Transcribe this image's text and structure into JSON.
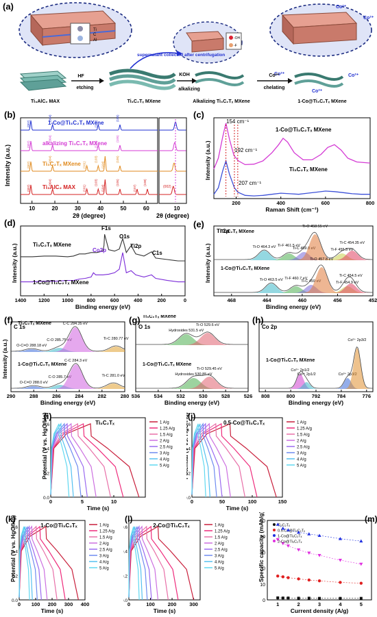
{
  "panel_labels": {
    "a": "(a)",
    "b": "(b)",
    "c": "(c)",
    "d": "(d)",
    "e": "(e)",
    "f": "(f)",
    "g": "(g)",
    "h": "(h)",
    "i": "(i)",
    "j": "(j)",
    "k": "(k)",
    "l": "(l)",
    "m": "(m)"
  },
  "scheme": {
    "stage_labels": [
      "Ti₃AlC₂ MAX",
      "Ti₃C₂Tₓ MXene",
      "Alkalizing Ti₃C₂Tₓ MXene",
      "1-Co@Ti₃C₂Tₓ MXene"
    ],
    "arrow_labels": [
      "HF",
      "etching",
      "KOH",
      "alkalizing",
      "Co²⁺",
      "chelating"
    ],
    "note": "supernatant collected after centrifugation",
    "atom_legend": [
      "Ti",
      "C",
      "Al",
      "-OH",
      "-F"
    ],
    "co_ion": "Co²⁺"
  },
  "xrd": {
    "xlabel": "2θ (degree)",
    "ylabel": "Intensity (a.u.)",
    "traces": [
      {
        "name": "1-Co@Ti₃C₂Tₓ MXene",
        "color": "#1f2fd0",
        "peaks": [
          "(002)",
          "(004)",
          "(103)",
          "(105)"
        ]
      },
      {
        "name": "alkalizing Ti₃C₂Tₓ MXene",
        "color": "#d43ad4",
        "peaks": [
          "(002)",
          "(004)",
          "(103)",
          "(105)"
        ]
      },
      {
        "name": "Ti₃C₂Tₓ MXene",
        "color": "#e08a1e",
        "peaks": [
          "(002)",
          "(004)",
          "(101)",
          "(103)",
          "(104)",
          "(105)"
        ]
      },
      {
        "name": "Ti₃AlC₂ MAX",
        "color": "#d42020",
        "peaks": [
          "(002)",
          "(004)",
          "(101)",
          "(103)",
          "(104)",
          "(105)",
          "(107)",
          "(108)"
        ]
      }
    ],
    "x_ticks": [
      "10",
      "20",
      "30",
      "40",
      "50",
      "60"
    ],
    "inset_ticks": [
      "10"
    ],
    "inset_peak": "(002)"
  },
  "chart_data": [
    {
      "type": "line",
      "title": "",
      "xlabel": "Raman Shift (cm⁻¹)",
      "ylabel": "Intensity (a.u.)",
      "xlim": [
        100,
        800
      ],
      "x_ticks": [
        200,
        400,
        600,
        800
      ],
      "series": [
        {
          "name": "1-Co@Ti₃C₂Tₓ MXene",
          "color": "#d43ad4",
          "x": [
            100,
            120,
            140,
            154,
            170,
            190,
            210,
            240,
            280,
            320,
            360,
            390,
            410,
            430,
            460,
            500,
            540,
            580,
            610,
            640,
            670,
            700,
            740,
            800
          ],
          "y": [
            0.55,
            0.75,
            1.15,
            1.4,
            1.1,
            0.8,
            0.7,
            0.63,
            0.64,
            0.7,
            0.85,
            1.0,
            1.12,
            1.05,
            0.85,
            0.72,
            0.72,
            0.82,
            0.95,
            1.0,
            0.9,
            0.75,
            0.68,
            0.66
          ]
        },
        {
          "name": "Ti₃C₂Tₓ MXene",
          "color": "#3c50d8",
          "x": [
            100,
            120,
            140,
            154,
            170,
            192,
            207,
            240,
            280,
            320,
            360,
            400,
            440,
            480,
            520,
            560,
            600,
            640,
            680,
            720,
            760,
            800
          ],
          "y": [
            0.08,
            0.2,
            0.52,
            0.7,
            0.45,
            0.2,
            0.12,
            0.06,
            0.05,
            0.06,
            0.08,
            0.1,
            0.09,
            0.08,
            0.1,
            0.12,
            0.14,
            0.13,
            0.11,
            0.09,
            0.08,
            0.08
          ]
        }
      ],
      "annotations": [
        "154 cm⁻¹",
        "192 cm⁻¹",
        "207 cm⁻¹"
      ]
    },
    {
      "type": "line",
      "title": "",
      "xlabel": "Binding energy (eV)",
      "ylabel": "Intensity (a.u.)",
      "xlim": [
        1400,
        0
      ],
      "x_ticks": [
        1400,
        1200,
        1000,
        800,
        600,
        400,
        200,
        0
      ],
      "series": [
        {
          "name": "Ti₃C₂Tₓ MXene",
          "color": "#333333",
          "x": [
            1400,
            1300,
            1200,
            1100,
            1000,
            950,
            900,
            850,
            800,
            750,
            700,
            690,
            685,
            650,
            600,
            560,
            531,
            500,
            459,
            420,
            350,
            285,
            250,
            150,
            60,
            0
          ],
          "y": [
            0.56,
            0.56,
            0.57,
            0.57,
            0.56,
            0.57,
            0.6,
            0.6,
            0.62,
            0.62,
            0.64,
            0.72,
            0.88,
            0.66,
            0.64,
            0.67,
            0.82,
            0.62,
            0.72,
            0.6,
            0.57,
            0.63,
            0.54,
            0.52,
            0.5,
            0.5
          ]
        },
        {
          "name": "1-Co@Ti₃C₂Tₓ MXene",
          "color": "#7a2ad8",
          "x": [
            1400,
            1300,
            1200,
            1100,
            1000,
            950,
            900,
            850,
            800,
            780,
            760,
            700,
            650,
            600,
            560,
            531,
            500,
            459,
            420,
            350,
            285,
            250,
            150,
            60,
            0
          ],
          "y": [
            0.2,
            0.2,
            0.21,
            0.21,
            0.22,
            0.22,
            0.24,
            0.25,
            0.27,
            0.33,
            0.3,
            0.3,
            0.31,
            0.33,
            0.38,
            0.62,
            0.33,
            0.36,
            0.3,
            0.27,
            0.3,
            0.25,
            0.22,
            0.2,
            0.2
          ]
        }
      ],
      "peak_labels": [
        "F1s",
        "O1s",
        "Ti2p",
        "C1s",
        "Co2p"
      ]
    },
    {
      "type": "line",
      "title": "Ti 2p",
      "xlabel": "Binding energy (eV)",
      "ylabel": "Intensity (a.u.)",
      "xlim": [
        470,
        452
      ],
      "x_ticks": [
        468,
        464,
        460,
        456,
        452
      ],
      "series": [
        {
          "name": "Ti₃C₂Tₓ MXene",
          "color": "#333333",
          "components": [
            {
              "label": "Ti-O 464.3 eV",
              "x": 464.3
            },
            {
              "label": "Ti-F 461.5 eV",
              "x": 461.5
            },
            {
              "label": "Ti-C 459.8 eV",
              "x": 459.8
            },
            {
              "label": "Ti-O 458.55 eV",
              "x": 458.55
            },
            {
              "label": "Ti-F 455.5 eV",
              "x": 455.5
            },
            {
              "label": "Ti-C 454.35 eV",
              "x": 454.35
            }
          ]
        },
        {
          "name": "1-Co@Ti₃C₂Tₓ MXene",
          "color": "#333333",
          "components": [
            {
              "label": "Ti-O 463.5 eV",
              "x": 463.5
            },
            {
              "label": "Ti-F 460.7 eV",
              "x": 460.7
            },
            {
              "label": "Ti-C 459 eV",
              "x": 459
            },
            {
              "label": "Ti-O 457.8 eV",
              "x": 457.8
            },
            {
              "label": "Ti-F 454.9 eV",
              "x": 454.9
            },
            {
              "label": "Ti-C 454.5 eV",
              "x": 454.5
            }
          ]
        }
      ]
    },
    {
      "type": "line",
      "title": "C 1s",
      "xlabel": "Binding energy (eV)",
      "ylabel": "Intensity (a.u.)",
      "xlim": [
        290,
        280
      ],
      "x_ticks": [
        290,
        288,
        286,
        284,
        282,
        280
      ],
      "series": [
        {
          "name": "Ti₃C₂Tₓ MXene",
          "components": [
            {
              "label": "O-C=O 288.18 eV",
              "x": 288.18
            },
            {
              "label": "C-O 285.75 eV",
              "x": 285.75
            },
            {
              "label": "C-C 284.35 eV",
              "x": 284.35
            },
            {
              "label": "Ti-C 280.77 eV",
              "x": 280.77
            }
          ]
        },
        {
          "name": "1-Co@Ti₃C₂Tₓ MXene",
          "components": [
            {
              "label": "O-C=O 288.0 eV",
              "x": 288.0
            },
            {
              "label": "C-O 285.7 eV",
              "x": 285.7
            },
            {
              "label": "C-C 284.3 eV",
              "x": 284.3
            },
            {
              "label": "Ti-C 281.0 eV",
              "x": 281.0
            }
          ]
        }
      ]
    },
    {
      "type": "line",
      "title": "O 1s",
      "xlabel": "Binding energy (eV)",
      "ylabel": "",
      "xlim": [
        536,
        526
      ],
      "x_ticks": [
        536,
        534,
        532,
        530,
        528,
        526
      ],
      "series": [
        {
          "name": "Ti₃C₂Tₓ MXene",
          "components": [
            {
              "label": "Hydroxides 531.5 eV",
              "x": 531.5
            },
            {
              "label": "Ti-O 529.6 eV",
              "x": 529.6
            }
          ]
        },
        {
          "name": "1-Co@Ti₃C₂Tₓ MXene",
          "components": [
            {
              "label": "Hydroxides 530.85 eV",
              "x": 530.85
            },
            {
              "label": "Ti-O 529.45 eV",
              "x": 529.45
            }
          ]
        }
      ]
    },
    {
      "type": "line",
      "title": "Co 2p",
      "xlabel": "Binding energy (eV)",
      "ylabel": "",
      "xlim": [
        810,
        774
      ],
      "x_ticks": [
        808,
        800,
        792,
        784,
        776
      ],
      "series": [
        {
          "name": "1-Co@Ti₃C₂Tₓ MXene",
          "components": [
            {
              "label": "Co²⁺ 2p1/2",
              "x": 797
            },
            {
              "label": "Co³⁺ 2p1/2",
              "x": 795
            },
            {
              "label": "Co³⁺ 2p3/2",
              "x": 782
            },
            {
              "label": "Co²⁺ 2p3/2",
              "x": 779
            }
          ]
        }
      ]
    },
    {
      "type": "line",
      "title": "Ti₃C₂Tₓ",
      "xlabel": "Time (s)",
      "ylabel": "Potential (V vs. HgO/Hg)",
      "xlim": [
        0,
        15
      ],
      "ylim": [
        0,
        0.6
      ],
      "x_ticks": [
        0,
        5,
        10
      ],
      "series": [
        {
          "name": "1 A/g",
          "t_end": 14.0
        },
        {
          "name": "1.25 A/g",
          "t_end": 11.5
        },
        {
          "name": "1.5 A/g",
          "t_end": 9.5
        },
        {
          "name": "2 A/g",
          "t_end": 7.2
        },
        {
          "name": "2.5 A/g",
          "t_end": 5.8
        },
        {
          "name": "3 A/g",
          "t_end": 4.8
        },
        {
          "name": "4 A/g",
          "t_end": 3.6
        },
        {
          "name": "5 A/g",
          "t_end": 2.9
        }
      ]
    },
    {
      "type": "line",
      "title": "0.5-Co@Ti₃C₂Tₓ",
      "xlabel": "Time (s)",
      "ylabel": "Potential (V vs. HgO/Hg)",
      "xlim": [
        0,
        150
      ],
      "ylim": [
        0,
        0.6
      ],
      "x_ticks": [
        0,
        50,
        100,
        150
      ],
      "series": [
        {
          "name": "1 A/g",
          "t_end": 140
        },
        {
          "name": "1.25 A/g",
          "t_end": 108
        },
        {
          "name": "1.5 A/g",
          "t_end": 88
        },
        {
          "name": "2 A/g",
          "t_end": 64
        },
        {
          "name": "2.5 A/g",
          "t_end": 50
        },
        {
          "name": "3 A/g",
          "t_end": 41
        },
        {
          "name": "4 A/g",
          "t_end": 30
        },
        {
          "name": "5 A/g",
          "t_end": 23
        }
      ]
    },
    {
      "type": "line",
      "title": "1-Co@Ti₃C₂Tₓ",
      "xlabel": "Time (s)",
      "ylabel": "Potential (V vs. HgO/Hg)",
      "xlim": [
        0,
        400
      ],
      "ylim": [
        0,
        0.6
      ],
      "x_ticks": [
        0,
        100,
        200,
        300,
        400
      ],
      "series": [
        {
          "name": "1 A/g",
          "t_end": 360
        },
        {
          "name": "1.25 A/g",
          "t_end": 280
        },
        {
          "name": "1.5 A/g",
          "t_end": 230
        },
        {
          "name": "2 A/g",
          "t_end": 170
        },
        {
          "name": "2.5 A/g",
          "t_end": 135
        },
        {
          "name": "3 A/g",
          "t_end": 110
        },
        {
          "name": "4 A/g",
          "t_end": 80
        },
        {
          "name": "5 A/g",
          "t_end": 63
        }
      ]
    },
    {
      "type": "line",
      "title": "2-Co@Ti₃C₂Tₓ",
      "xlabel": "Time (s)",
      "ylabel": "",
      "xlim": [
        0,
        330
      ],
      "ylim": [
        0,
        0.6
      ],
      "x_ticks": [
        0,
        100,
        200,
        300
      ],
      "series": [
        {
          "name": "1 A/g",
          "t_end": 300
        },
        {
          "name": "1.25 A/g",
          "t_end": 228
        },
        {
          "name": "1.5 A/g",
          "t_end": 182
        },
        {
          "name": "2 A/g",
          "t_end": 135
        },
        {
          "name": "2.5 A/g",
          "t_end": 105
        },
        {
          "name": "3 A/g",
          "t_end": 85
        },
        {
          "name": "4 A/g",
          "t_end": 62
        },
        {
          "name": "5 A/g",
          "t_end": 48
        }
      ]
    },
    {
      "type": "scatter",
      "title": "",
      "xlabel": "Current density (A/g)",
      "ylabel": "Specific capacity (mAh/g)",
      "xlim": [
        0.5,
        5.5
      ],
      "ylim": [
        0,
        50
      ],
      "x_ticks": [
        1,
        2,
        3,
        4,
        5
      ],
      "y_ticks": [
        0,
        10,
        20,
        30,
        40,
        50
      ],
      "series": [
        {
          "name": "Ti₃C₂Tₓ",
          "color": "#111111",
          "marker": "square",
          "x": [
            1,
            1.25,
            1.5,
            2,
            2.5,
            3,
            4,
            5
          ],
          "y": [
            1.3,
            1.2,
            1.2,
            1.1,
            1.1,
            1.0,
            1.0,
            1.0
          ]
        },
        {
          "name": "0.5-Co@Ti₃C₂Tₓ",
          "color": "#e02020",
          "marker": "circle",
          "x": [
            1,
            1.25,
            1.5,
            2,
            2.5,
            3,
            4,
            5
          ],
          "y": [
            15,
            14.5,
            14,
            13.2,
            12.5,
            12,
            11,
            10.5
          ]
        },
        {
          "name": "1-Co@Ti₃C₂Tₓ",
          "color": "#2030e0",
          "marker": "triangle",
          "x": [
            1,
            1.25,
            1.5,
            2,
            2.5,
            3,
            4,
            5
          ],
          "y": [
            47.5,
            45,
            44,
            42.5,
            41.5,
            40.5,
            38.5,
            37
          ]
        },
        {
          "name": "2-Co@Ti₃C₂Tₓ",
          "color": "#e030e0",
          "marker": "triangle-down",
          "x": [
            1,
            1.25,
            1.5,
            2,
            2.5,
            3,
            4,
            5
          ],
          "y": [
            38,
            35.5,
            34,
            31.5,
            29.5,
            28,
            25,
            22.5
          ]
        }
      ]
    }
  ],
  "colors": {
    "gcd": [
      "#c81e3a",
      "#ee2a7b",
      "#e86fa8",
      "#cc6fe0",
      "#9a6af0",
      "#6e8bf0",
      "#54c0f0",
      "#5fd8f0"
    ]
  }
}
